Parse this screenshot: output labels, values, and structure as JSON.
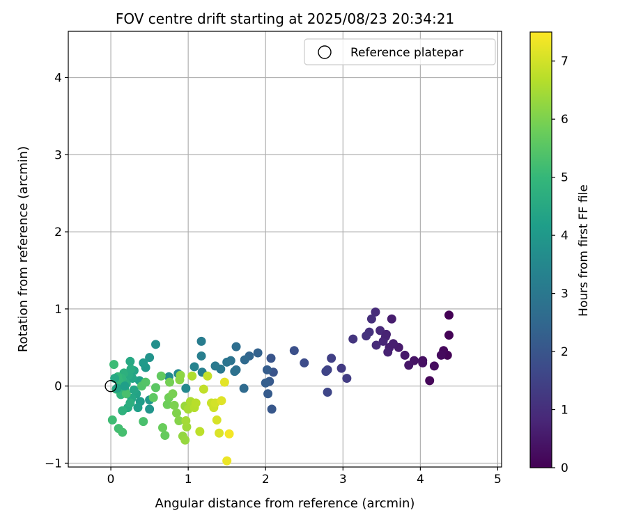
{
  "chart_data": {
    "type": "scatter",
    "title": "FOV centre drift starting at 2025/08/23 20:34:21",
    "xlabel": "Angular distance from reference (arcmin)",
    "ylabel": "Rotation from reference (arcmin)",
    "xlim": [
      -0.55,
      5.05
    ],
    "ylim": [
      -1.05,
      4.6
    ],
    "xticks": [
      "0",
      "1",
      "2",
      "3",
      "4",
      "5"
    ],
    "xtick_values": [
      0,
      1,
      2,
      3,
      4,
      5
    ],
    "yticks": [
      "−1",
      "0",
      "1",
      "2",
      "3",
      "4"
    ],
    "ytick_values": [
      -1,
      0,
      1,
      2,
      3,
      4
    ],
    "grid": true,
    "legend": {
      "position": "top-right",
      "label": "Reference platepar",
      "marker": "open-circle"
    },
    "reference_point": {
      "x": 0,
      "y": 0,
      "color": "#000000"
    },
    "colorbar": {
      "label": "Hours from first FF file",
      "min": 0,
      "max": 7.5,
      "ticks": [
        "0",
        "1",
        "2",
        "3",
        "4",
        "5",
        "6",
        "7"
      ],
      "tick_values": [
        0,
        1,
        2,
        3,
        4,
        5,
        6,
        7
      ],
      "colormap": "viridis",
      "stops": [
        "#440154",
        "#482878",
        "#3e4989",
        "#31688e",
        "#26828e",
        "#1f9e89",
        "#35b779",
        "#6ece58",
        "#b5de2b",
        "#fde725"
      ]
    },
    "points": [
      {
        "x": 4.37,
        "y": 0.92,
        "t": 0.02
      },
      {
        "x": 4.37,
        "y": 0.66,
        "t": 0.05
      },
      {
        "x": 4.35,
        "y": 0.4,
        "t": 0.08
      },
      {
        "x": 4.12,
        "y": 0.07,
        "t": 0.12
      },
      {
        "x": 4.3,
        "y": 0.46,
        "t": 0.16
      },
      {
        "x": 4.27,
        "y": 0.4,
        "t": 0.2
      },
      {
        "x": 4.18,
        "y": 0.26,
        "t": 0.25
      },
      {
        "x": 4.03,
        "y": 0.33,
        "t": 0.3
      },
      {
        "x": 4.03,
        "y": 0.3,
        "t": 0.35
      },
      {
        "x": 3.92,
        "y": 0.33,
        "t": 0.4
      },
      {
        "x": 3.85,
        "y": 0.27,
        "t": 0.45
      },
      {
        "x": 3.8,
        "y": 0.4,
        "t": 0.5
      },
      {
        "x": 3.72,
        "y": 0.5,
        "t": 0.55
      },
      {
        "x": 3.63,
        "y": 0.87,
        "t": 0.6
      },
      {
        "x": 3.6,
        "y": 0.5,
        "t": 0.65
      },
      {
        "x": 3.58,
        "y": 0.44,
        "t": 0.7
      },
      {
        "x": 3.55,
        "y": 0.64,
        "t": 0.75
      },
      {
        "x": 3.52,
        "y": 0.58,
        "t": 0.8
      },
      {
        "x": 3.48,
        "y": 0.72,
        "t": 0.85
      },
      {
        "x": 3.43,
        "y": 0.53,
        "t": 0.9
      },
      {
        "x": 3.42,
        "y": 0.96,
        "t": 0.95
      },
      {
        "x": 3.37,
        "y": 0.87,
        "t": 1.0
      },
      {
        "x": 3.34,
        "y": 0.7,
        "t": 1.05
      },
      {
        "x": 3.3,
        "y": 0.65,
        "t": 1.1
      },
      {
        "x": 3.13,
        "y": 0.61,
        "t": 1.15
      },
      {
        "x": 3.56,
        "y": 0.67,
        "t": 0.72
      },
      {
        "x": 3.65,
        "y": 0.55,
        "t": 0.62
      },
      {
        "x": 2.98,
        "y": 0.23,
        "t": 1.3
      },
      {
        "x": 3.05,
        "y": 0.1,
        "t": 1.35
      },
      {
        "x": 2.85,
        "y": 0.36,
        "t": 1.45
      },
      {
        "x": 2.8,
        "y": 0.21,
        "t": 1.5
      },
      {
        "x": 2.78,
        "y": 0.19,
        "t": 1.55
      },
      {
        "x": 2.8,
        "y": -0.08,
        "t": 1.6
      },
      {
        "x": 2.5,
        "y": 0.3,
        "t": 1.75
      },
      {
        "x": 2.37,
        "y": 0.46,
        "t": 1.85
      },
      {
        "x": 2.1,
        "y": 0.18,
        "t": 1.95
      },
      {
        "x": 2.07,
        "y": 0.36,
        "t": 2.0
      },
      {
        "x": 2.08,
        "y": -0.3,
        "t": 2.05
      },
      {
        "x": 2.05,
        "y": 0.06,
        "t": 2.1
      },
      {
        "x": 2.03,
        "y": -0.1,
        "t": 2.15
      },
      {
        "x": 2.02,
        "y": 0.21,
        "t": 2.2
      },
      {
        "x": 2.0,
        "y": 0.04,
        "t": 2.25
      },
      {
        "x": 1.9,
        "y": 0.43,
        "t": 2.35
      },
      {
        "x": 1.79,
        "y": 0.39,
        "t": 2.45
      },
      {
        "x": 1.73,
        "y": 0.34,
        "t": 2.55
      },
      {
        "x": 1.72,
        "y": -0.03,
        "t": 2.6
      },
      {
        "x": 1.62,
        "y": 0.51,
        "t": 2.7
      },
      {
        "x": 1.62,
        "y": 0.21,
        "t": 2.75
      },
      {
        "x": 1.6,
        "y": 0.19,
        "t": 2.8
      },
      {
        "x": 1.55,
        "y": 0.33,
        "t": 2.85
      },
      {
        "x": 1.5,
        "y": 0.31,
        "t": 2.9
      },
      {
        "x": 1.42,
        "y": 0.22,
        "t": 3.0
      },
      {
        "x": 1.35,
        "y": 0.26,
        "t": 3.05
      },
      {
        "x": 1.17,
        "y": 0.58,
        "t": 3.15
      },
      {
        "x": 1.17,
        "y": 0.39,
        "t": 3.2
      },
      {
        "x": 1.18,
        "y": 0.18,
        "t": 3.25
      },
      {
        "x": 1.08,
        "y": 0.25,
        "t": 3.35
      },
      {
        "x": 0.97,
        "y": -0.03,
        "t": 3.5
      },
      {
        "x": 0.87,
        "y": 0.16,
        "t": 3.55
      },
      {
        "x": 0.75,
        "y": 0.12,
        "t": 3.65
      },
      {
        "x": 0.58,
        "y": 0.54,
        "t": 3.75
      },
      {
        "x": 0.5,
        "y": 0.37,
        "t": 3.85
      },
      {
        "x": 0.5,
        "y": -0.3,
        "t": 3.9
      },
      {
        "x": 0.5,
        "y": -0.18,
        "t": 3.95
      },
      {
        "x": 0.45,
        "y": 0.24,
        "t": 4.0
      },
      {
        "x": 0.42,
        "y": 0.3,
        "t": 4.05
      },
      {
        "x": 0.38,
        "y": -0.2,
        "t": 4.1
      },
      {
        "x": 0.35,
        "y": -0.28,
        "t": 4.2
      },
      {
        "x": 0.37,
        "y": 0.07,
        "t": 4.25
      },
      {
        "x": 0.33,
        "y": -0.1,
        "t": 4.3
      },
      {
        "x": 0.3,
        "y": 0.2,
        "t": 4.35
      },
      {
        "x": 0.28,
        "y": 0.1,
        "t": 4.4
      },
      {
        "x": 0.27,
        "y": -0.16,
        "t": 4.45
      },
      {
        "x": 0.25,
        "y": 0.32,
        "t": 4.5
      },
      {
        "x": 0.23,
        "y": 0.14,
        "t": 4.55
      },
      {
        "x": 0.22,
        "y": -0.28,
        "t": 4.6
      },
      {
        "x": 0.2,
        "y": 0.03,
        "t": 4.65
      },
      {
        "x": 0.18,
        "y": -0.05,
        "t": 4.7
      },
      {
        "x": 0.17,
        "y": 0.17,
        "t": 4.75
      },
      {
        "x": 0.15,
        "y": -0.32,
        "t": 4.8
      },
      {
        "x": 0.14,
        "y": 0.1,
        "t": 4.85
      },
      {
        "x": 0.13,
        "y": -0.11,
        "t": 4.9
      },
      {
        "x": 0.11,
        "y": 0.06,
        "t": 4.95
      },
      {
        "x": 0.09,
        "y": 0.12,
        "t": 5.0
      },
      {
        "x": 0.07,
        "y": -0.04,
        "t": 5.05
      },
      {
        "x": 0.04,
        "y": 0.28,
        "t": 5.1
      },
      {
        "x": 0.02,
        "y": -0.44,
        "t": 5.15
      },
      {
        "x": 0.1,
        "y": -0.55,
        "t": 5.2
      },
      {
        "x": 0.15,
        "y": -0.6,
        "t": 5.25
      },
      {
        "x": 0.2,
        "y": -0.1,
        "t": 5.3
      },
      {
        "x": 0.26,
        "y": 0.22,
        "t": 4.6
      },
      {
        "x": 0.3,
        "y": -0.05,
        "t": 4.4
      },
      {
        "x": 0.42,
        "y": -0.46,
        "t": 5.3
      },
      {
        "x": 0.4,
        "y": 0.0,
        "t": 5.4
      },
      {
        "x": 0.45,
        "y": 0.05,
        "t": 5.45
      },
      {
        "x": 0.58,
        "y": -0.02,
        "t": 5.55
      },
      {
        "x": 0.55,
        "y": -0.15,
        "t": 5.6
      },
      {
        "x": 0.65,
        "y": 0.13,
        "t": 5.65
      },
      {
        "x": 0.7,
        "y": -0.64,
        "t": 5.7
      },
      {
        "x": 0.67,
        "y": -0.54,
        "t": 5.75
      },
      {
        "x": 0.73,
        "y": -0.24,
        "t": 5.8
      },
      {
        "x": 0.75,
        "y": -0.15,
        "t": 5.85
      },
      {
        "x": 0.76,
        "y": 0.05,
        "t": 5.9
      },
      {
        "x": 0.8,
        "y": -0.1,
        "t": 5.95
      },
      {
        "x": 0.82,
        "y": -0.25,
        "t": 6.0
      },
      {
        "x": 0.85,
        "y": -0.35,
        "t": 6.05
      },
      {
        "x": 0.88,
        "y": -0.45,
        "t": 6.1
      },
      {
        "x": 0.89,
        "y": 0.08,
        "t": 6.15
      },
      {
        "x": 0.9,
        "y": 0.14,
        "t": 6.2
      },
      {
        "x": 0.93,
        "y": -0.65,
        "t": 6.25
      },
      {
        "x": 0.96,
        "y": -0.7,
        "t": 6.3
      },
      {
        "x": 0.96,
        "y": -0.26,
        "t": 6.35
      },
      {
        "x": 0.98,
        "y": -0.53,
        "t": 6.4
      },
      {
        "x": 0.97,
        "y": -0.45,
        "t": 6.45
      },
      {
        "x": 1.0,
        "y": -0.3,
        "t": 6.5
      },
      {
        "x": 1.03,
        "y": -0.2,
        "t": 6.55
      },
      {
        "x": 1.05,
        "y": 0.13,
        "t": 6.6
      },
      {
        "x": 1.08,
        "y": -0.28,
        "t": 6.65
      },
      {
        "x": 1.1,
        "y": -0.22,
        "t": 6.7
      },
      {
        "x": 1.15,
        "y": -0.59,
        "t": 6.75
      },
      {
        "x": 1.2,
        "y": -0.04,
        "t": 6.8
      },
      {
        "x": 1.25,
        "y": 0.13,
        "t": 6.85
      },
      {
        "x": 1.3,
        "y": -0.22,
        "t": 6.9
      },
      {
        "x": 1.33,
        "y": -0.28,
        "t": 6.95
      },
      {
        "x": 1.35,
        "y": -0.22,
        "t": 7.0
      },
      {
        "x": 1.37,
        "y": -0.44,
        "t": 7.05
      },
      {
        "x": 1.4,
        "y": -0.61,
        "t": 7.1
      },
      {
        "x": 1.43,
        "y": -0.19,
        "t": 7.15
      },
      {
        "x": 1.47,
        "y": 0.05,
        "t": 7.2
      },
      {
        "x": 1.5,
        "y": -0.97,
        "t": 7.3
      },
      {
        "x": 1.53,
        "y": -0.62,
        "t": 7.4
      },
      {
        "x": 0.08,
        "y": -0.03,
        "t": 4.3
      },
      {
        "x": 0.05,
        "y": 0.1,
        "t": 4.5
      },
      {
        "x": 0.18,
        "y": 0.0,
        "t": 4.2
      },
      {
        "x": 0.25,
        "y": -0.22,
        "t": 4.7
      }
    ]
  }
}
